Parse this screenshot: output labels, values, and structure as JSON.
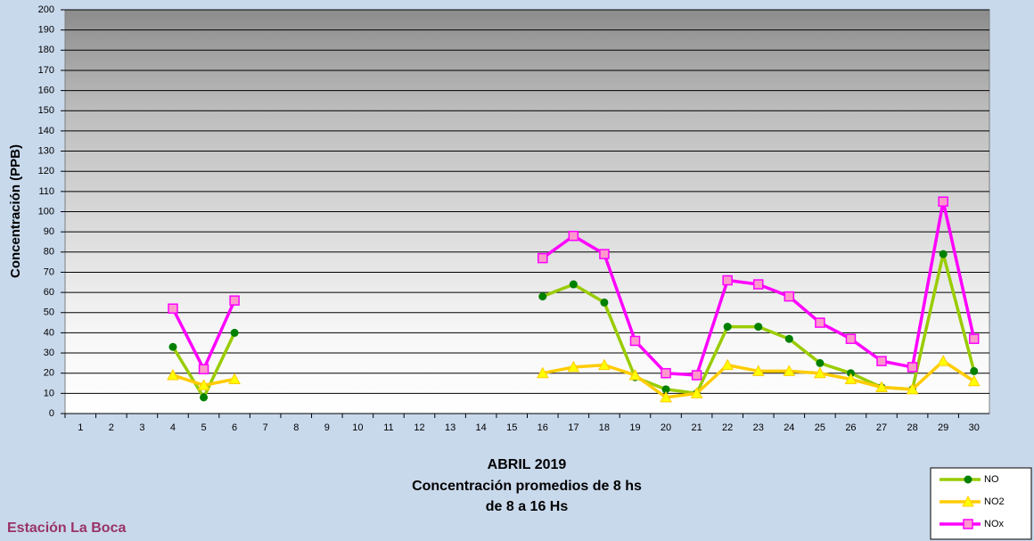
{
  "chart_data": {
    "type": "line",
    "ylabel": "Concentración (PPB)",
    "xlabel_lines": [
      "ABRIL 2019",
      "Concentración promedios de 8 hs",
      "de 8 a 16 Hs"
    ],
    "station": "Estación La Boca",
    "categories": [
      "1",
      "2",
      "3",
      "4",
      "5",
      "6",
      "7",
      "8",
      "9",
      "10",
      "11",
      "12",
      "13",
      "14",
      "15",
      "16",
      "17",
      "18",
      "19",
      "20",
      "21",
      "22",
      "23",
      "24",
      "25",
      "26",
      "27",
      "28",
      "29",
      "30"
    ],
    "series": [
      {
        "name": "NO",
        "color": "#99cc00",
        "marker_color": "#008000",
        "marker": "circle",
        "values": [
          null,
          null,
          null,
          33,
          8,
          40,
          null,
          null,
          null,
          null,
          null,
          null,
          null,
          null,
          null,
          58,
          64,
          55,
          18,
          12,
          10,
          43,
          43,
          37,
          25,
          20,
          13,
          12,
          79,
          21
        ]
      },
      {
        "name": "NO2",
        "color": "#ffcc00",
        "marker_color": "#ffff00",
        "marker": "triangle",
        "values": [
          null,
          null,
          null,
          19,
          14,
          17,
          null,
          null,
          null,
          null,
          null,
          null,
          null,
          null,
          null,
          20,
          23,
          24,
          19,
          8,
          10,
          24,
          21,
          21,
          20,
          17,
          13,
          12,
          26,
          16
        ]
      },
      {
        "name": "NOx",
        "color": "#ff00ff",
        "marker_color": "#ff99cc",
        "marker": "square",
        "values": [
          null,
          null,
          null,
          52,
          22,
          56,
          null,
          null,
          null,
          null,
          null,
          null,
          null,
          null,
          null,
          77,
          88,
          79,
          36,
          20,
          19,
          66,
          64,
          58,
          45,
          37,
          26,
          23,
          105,
          37
        ]
      }
    ],
    "ylim": [
      0,
      200
    ],
    "yticks": [
      0,
      10,
      20,
      30,
      40,
      50,
      60,
      70,
      80,
      90,
      100,
      110,
      120,
      130,
      140,
      150,
      160,
      170,
      180,
      190,
      200
    ],
    "grid": true
  }
}
